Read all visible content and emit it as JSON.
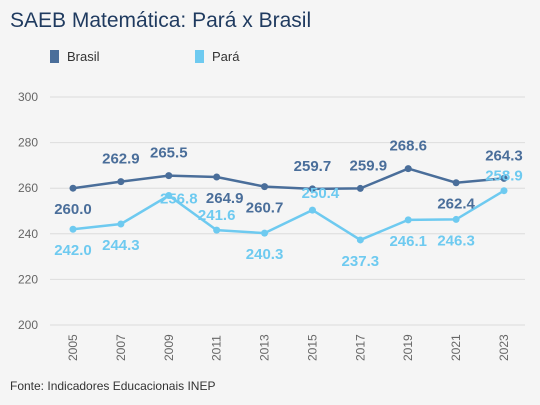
{
  "title": "SAEB Matemática: Pará x Brasil",
  "source": "Fonte: Indicadores Educacionais INEP",
  "colors": {
    "brasil": "#4a6e9a",
    "para": "#6ecaf0",
    "grid": "#dcdcdc"
  },
  "chart_data": {
    "type": "line",
    "x": [
      "2005",
      "2007",
      "2009",
      "2011",
      "2013",
      "2015",
      "2017",
      "2019",
      "2021",
      "2023"
    ],
    "yticks": [
      "300",
      "280",
      "260",
      "240",
      "220",
      "200"
    ],
    "ylim": [
      200,
      300
    ],
    "grid": true,
    "legend_position": "top-left",
    "series": [
      {
        "name": "Brasil",
        "values": [
          260.0,
          262.9,
          265.5,
          264.9,
          260.7,
          259.7,
          259.9,
          268.6,
          262.4,
          264.3
        ],
        "labels": [
          "260.0",
          "262.9",
          "265.5",
          "264.9",
          "260.7",
          "259.7",
          "259.9",
          "268.6",
          "262.4",
          "264.3"
        ]
      },
      {
        "name": "Pará",
        "values": [
          242.0,
          244.3,
          256.8,
          241.6,
          240.3,
          250.4,
          237.3,
          246.1,
          246.3,
          258.9
        ],
        "labels": [
          "242.0",
          "244.3",
          "256.8",
          "241.6",
          "240.3",
          "250.4",
          "237.3",
          "246.1",
          "246.3",
          "258.9"
        ]
      }
    ]
  }
}
